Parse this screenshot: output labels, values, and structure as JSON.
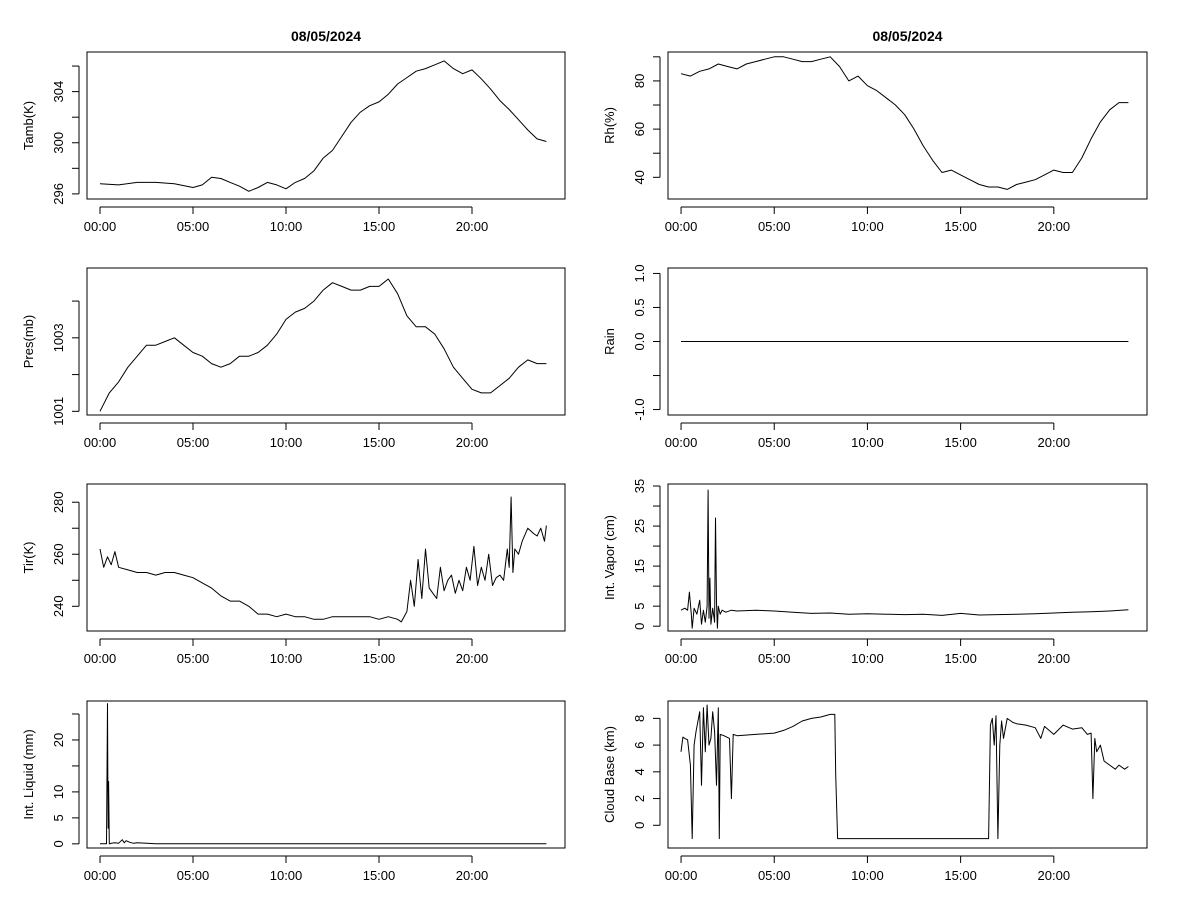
{
  "chart_data": [
    {
      "id": "tamb",
      "type": "line",
      "title": "08/05/2024",
      "ylabel": "Tamb(K)",
      "xlabel": "",
      "xlim": [
        -0.7,
        25
      ],
      "ylim": [
        295.6,
        307.1
      ],
      "xticks": [
        0,
        5,
        10,
        15,
        20
      ],
      "xtick_labels": [
        "00:00",
        "05:00",
        "10:00",
        "15:00",
        "20:00"
      ],
      "yticks": [
        296,
        298,
        300,
        302,
        304,
        306
      ],
      "ytick_labels": [
        "296",
        "",
        "300",
        "",
        "304",
        ""
      ],
      "series": [
        {
          "name": "Tamb",
          "x": [
            0,
            1,
            2,
            3,
            4,
            5,
            5.5,
            6,
            6.5,
            7,
            7.5,
            8,
            8.5,
            9,
            9.5,
            10,
            10.5,
            11,
            11.5,
            12,
            12.5,
            13,
            13.5,
            14,
            14.5,
            15,
            15.5,
            16,
            16.5,
            17,
            17.5,
            18,
            18.5,
            19,
            19.5,
            20,
            20.5,
            21,
            21.5,
            22,
            22.5,
            23,
            23.5,
            24
          ],
          "values": [
            296.8,
            296.7,
            296.9,
            296.9,
            296.8,
            296.5,
            296.7,
            297.3,
            297.2,
            296.9,
            296.6,
            296.2,
            296.5,
            296.9,
            296.7,
            296.4,
            296.9,
            297.2,
            297.8,
            298.8,
            299.4,
            300.5,
            301.6,
            302.4,
            302.9,
            303.2,
            303.8,
            304.6,
            305.1,
            305.6,
            305.8,
            306.1,
            306.4,
            305.8,
            305.4,
            305.7,
            305.0,
            304.2,
            303.3,
            302.6,
            301.8,
            301.0,
            300.3,
            300.1
          ]
        }
      ]
    },
    {
      "id": "rh",
      "type": "line",
      "title": "08/05/2024",
      "ylabel": "Rh(%)",
      "xlabel": "",
      "xlim": [
        -0.7,
        25
      ],
      "ylim": [
        31,
        92
      ],
      "xticks": [
        0,
        5,
        10,
        15,
        20
      ],
      "xtick_labels": [
        "00:00",
        "05:00",
        "10:00",
        "15:00",
        "20:00"
      ],
      "yticks": [
        40,
        50,
        60,
        70,
        80,
        90
      ],
      "ytick_labels": [
        "40",
        "",
        "60",
        "",
        "80",
        ""
      ],
      "series": [
        {
          "name": "Rh",
          "x": [
            0,
            0.5,
            1,
            1.5,
            2,
            2.5,
            3,
            3.5,
            4,
            4.5,
            5,
            5.5,
            6,
            6.5,
            7,
            7.5,
            8,
            8.5,
            9,
            9.5,
            10,
            10.5,
            11,
            11.5,
            12,
            12.5,
            13,
            13.5,
            14,
            14.5,
            15,
            15.5,
            16,
            16.5,
            17,
            17.5,
            18,
            18.5,
            19,
            19.5,
            20,
            20.5,
            21,
            21.5,
            22,
            22.5,
            23,
            23.5,
            24
          ],
          "values": [
            83,
            82,
            84,
            85,
            87,
            86,
            85,
            87,
            88,
            89,
            90,
            90,
            89,
            88,
            88,
            89,
            90,
            86,
            80,
            82,
            78,
            76,
            73,
            70,
            66,
            60,
            53,
            47,
            42,
            43,
            41,
            39,
            37,
            36,
            36,
            35,
            37,
            38,
            39,
            41,
            43,
            42,
            42,
            48,
            56,
            63,
            68,
            71,
            71
          ]
        }
      ]
    },
    {
      "id": "pres",
      "type": "line",
      "title": "",
      "ylabel": "Pres(mb)",
      "xlabel": "",
      "xlim": [
        -0.7,
        25
      ],
      "ylim": [
        1000.9,
        1004.9
      ],
      "xticks": [
        0,
        5,
        10,
        15,
        20
      ],
      "xtick_labels": [
        "00:00",
        "05:00",
        "10:00",
        "15:00",
        "20:00"
      ],
      "yticks": [
        1001,
        1002,
        1003,
        1004
      ],
      "ytick_labels": [
        "1001",
        "",
        "1003",
        ""
      ],
      "series": [
        {
          "name": "Pres",
          "x": [
            0,
            0.5,
            1,
            1.5,
            2,
            2.5,
            3,
            3.5,
            4,
            4.5,
            5,
            5.5,
            6,
            6.5,
            7,
            7.5,
            8,
            8.5,
            9,
            9.5,
            10,
            10.5,
            11,
            11.5,
            12,
            12.5,
            13,
            13.5,
            14,
            14.5,
            15,
            15.5,
            16,
            16.5,
            17,
            17.5,
            18,
            18.5,
            19,
            19.5,
            20,
            20.5,
            21,
            21.5,
            22,
            22.5,
            23,
            23.5,
            24
          ],
          "values": [
            1001.0,
            1001.5,
            1001.8,
            1002.2,
            1002.5,
            1002.8,
            1002.8,
            1002.9,
            1003.0,
            1002.8,
            1002.6,
            1002.5,
            1002.3,
            1002.2,
            1002.3,
            1002.5,
            1002.5,
            1002.6,
            1002.8,
            1003.1,
            1003.5,
            1003.7,
            1003.8,
            1004.0,
            1004.3,
            1004.5,
            1004.4,
            1004.3,
            1004.3,
            1004.4,
            1004.4,
            1004.6,
            1004.2,
            1003.6,
            1003.3,
            1003.3,
            1003.1,
            1002.7,
            1002.2,
            1001.9,
            1001.6,
            1001.5,
            1001.5,
            1001.7,
            1001.9,
            1002.2,
            1002.4,
            1002.3,
            1002.3
          ]
        }
      ]
    },
    {
      "id": "rain",
      "type": "line",
      "title": "",
      "ylabel": "Rain",
      "xlabel": "",
      "xlim": [
        -0.7,
        25
      ],
      "ylim": [
        -1.08,
        1.08
      ],
      "xticks": [
        0,
        5,
        10,
        15,
        20
      ],
      "xtick_labels": [
        "00:00",
        "05:00",
        "10:00",
        "15:00",
        "20:00"
      ],
      "yticks": [
        -1.0,
        -0.5,
        0.0,
        0.5,
        1.0
      ],
      "ytick_labels": [
        "-1.0",
        "",
        "0.0",
        "0.5",
        "1.0"
      ],
      "series": [
        {
          "name": "Rain",
          "x": [
            0,
            24
          ],
          "values": [
            0,
            0
          ]
        }
      ]
    },
    {
      "id": "tir",
      "type": "line",
      "title": "",
      "ylabel": "Tir(K)",
      "xlabel": "",
      "xlim": [
        -0.7,
        25
      ],
      "ylim": [
        230.5,
        287
      ],
      "xticks": [
        0,
        5,
        10,
        15,
        20
      ],
      "xtick_labels": [
        "00:00",
        "05:00",
        "10:00",
        "15:00",
        "20:00"
      ],
      "yticks": [
        240,
        250,
        260,
        270,
        280
      ],
      "ytick_labels": [
        "240",
        "",
        "260",
        "",
        "280"
      ],
      "series": [
        {
          "name": "Tir",
          "x": [
            0,
            0.2,
            0.4,
            0.6,
            0.8,
            1,
            1.5,
            2,
            2.5,
            3,
            3.5,
            4,
            4.5,
            5,
            5.5,
            6,
            6.5,
            7,
            7.5,
            8,
            8.5,
            9,
            9.5,
            10,
            10.5,
            11,
            11.5,
            12,
            12.5,
            13,
            13.5,
            14,
            14.5,
            15,
            15.5,
            16,
            16.2,
            16.5,
            16.7,
            16.9,
            17.1,
            17.3,
            17.5,
            17.7,
            17.9,
            18.1,
            18.3,
            18.5,
            18.7,
            18.9,
            19.1,
            19.3,
            19.5,
            19.7,
            19.9,
            20.1,
            20.3,
            20.5,
            20.7,
            20.9,
            21.1,
            21.3,
            21.5,
            21.7,
            21.9,
            22.0,
            22.1,
            22.2,
            22.3,
            22.5,
            22.7,
            23,
            23.3,
            23.5,
            23.7,
            23.9,
            24
          ],
          "values": [
            262,
            255,
            259,
            256,
            261,
            255,
            254,
            253,
            253,
            252,
            253,
            253,
            252,
            251,
            249,
            247,
            244,
            242,
            242,
            240,
            237,
            237,
            236,
            237,
            236,
            236,
            235,
            235,
            236,
            236,
            236,
            236,
            236,
            235,
            236,
            235,
            234,
            238,
            250,
            240,
            258,
            243,
            262,
            247,
            245,
            243,
            255,
            246,
            250,
            252,
            245,
            250,
            246,
            255,
            250,
            263,
            248,
            255,
            250,
            260,
            248,
            251,
            252,
            250,
            262,
            255,
            282,
            253,
            262,
            260,
            265,
            270,
            268,
            267,
            270,
            265,
            271
          ]
        }
      ]
    },
    {
      "id": "vapor",
      "type": "line",
      "title": "",
      "ylabel": "Int. Vapor (cm)",
      "xlabel": "",
      "xlim": [
        -0.7,
        25
      ],
      "ylim": [
        -1.2,
        35.5
      ],
      "xticks": [
        0,
        5,
        10,
        15,
        20
      ],
      "xtick_labels": [
        "00:00",
        "05:00",
        "10:00",
        "15:00",
        "20:00"
      ],
      "yticks": [
        0,
        5,
        10,
        15,
        20,
        25,
        30,
        35
      ],
      "ytick_labels": [
        "0",
        "5",
        "",
        "15",
        "",
        "25",
        "",
        "35"
      ],
      "series": [
        {
          "name": "Vapor",
          "x": [
            0,
            0.2,
            0.35,
            0.45,
            0.55,
            0.6,
            0.7,
            0.85,
            1.0,
            1.1,
            1.2,
            1.3,
            1.4,
            1.45,
            1.5,
            1.55,
            1.6,
            1.7,
            1.8,
            1.85,
            1.9,
            1.95,
            2.0,
            2.1,
            2.2,
            2.4,
            2.7,
            3,
            4,
            5,
            6,
            7,
            8,
            9,
            10,
            11,
            12,
            13,
            14,
            15,
            16,
            17,
            18,
            19,
            20,
            21,
            22,
            23,
            24
          ],
          "values": [
            4,
            4.5,
            4,
            8.5,
            3,
            -0.5,
            4.5,
            3,
            6.5,
            0.5,
            4,
            1,
            5,
            34,
            2,
            12,
            0.5,
            4.5,
            1,
            27,
            6,
            -0.5,
            5,
            3,
            4,
            3.5,
            4,
            3.8,
            4,
            3.8,
            3.5,
            3.2,
            3.3,
            3.0,
            3.1,
            3.0,
            2.9,
            3.0,
            2.7,
            3.2,
            2.8,
            2.9,
            3.0,
            3.1,
            3.3,
            3.5,
            3.6,
            3.8,
            4.1
          ]
        }
      ]
    },
    {
      "id": "liquid",
      "type": "line",
      "title": "",
      "ylabel": "Int. Liquid (mm)",
      "xlabel": "",
      "xlim": [
        -0.7,
        25
      ],
      "ylim": [
        -0.8,
        27.5
      ],
      "xticks": [
        0,
        5,
        10,
        15,
        20
      ],
      "xtick_labels": [
        "00:00",
        "05:00",
        "10:00",
        "15:00",
        "20:00"
      ],
      "yticks": [
        0,
        5,
        10,
        15,
        20,
        25
      ],
      "ytick_labels": [
        "0",
        "5",
        "10",
        "",
        "20",
        ""
      ],
      "series": [
        {
          "name": "Liquid",
          "x": [
            0,
            0.35,
            0.4,
            0.42,
            0.44,
            0.46,
            0.5,
            0.55,
            0.6,
            0.8,
            1.0,
            1.2,
            1.3,
            1.4,
            1.6,
            1.8,
            2.0,
            2.5,
            3,
            24
          ],
          "values": [
            0,
            0,
            27,
            14,
            3,
            12,
            0,
            0,
            0.1,
            0.2,
            0.1,
            0.8,
            0.2,
            0.6,
            0.3,
            0.1,
            0.2,
            0.1,
            0,
            0
          ]
        }
      ]
    },
    {
      "id": "cloudbase",
      "type": "line",
      "title": "",
      "ylabel": "Cloud Base (km)",
      "xlabel": "",
      "xlim": [
        -0.7,
        25
      ],
      "ylim": [
        -1.7,
        9.3
      ],
      "xticks": [
        0,
        5,
        10,
        15,
        20
      ],
      "xtick_labels": [
        "00:00",
        "05:00",
        "10:00",
        "15:00",
        "20:00"
      ],
      "yticks": [
        0,
        2,
        4,
        6,
        8
      ],
      "ytick_labels": [
        "0",
        "2",
        "4",
        "6",
        "8"
      ],
      "series": [
        {
          "name": "CloudBase",
          "x": [
            0,
            0.1,
            0.2,
            0.35,
            0.5,
            0.6,
            0.7,
            0.8,
            1.0,
            1.1,
            1.2,
            1.3,
            1.4,
            1.5,
            1.6,
            1.7,
            1.8,
            1.9,
            2.0,
            2.05,
            2.1,
            2.3,
            2.6,
            2.7,
            2.8,
            3,
            4,
            5,
            5.5,
            6,
            6.5,
            7,
            7.5,
            8,
            8.25,
            8.3,
            8.4,
            9,
            10,
            12,
            14,
            16,
            16.5,
            16.6,
            16.7,
            16.8,
            16.9,
            17.0,
            17.1,
            17.2,
            17.3,
            17.5,
            17.8,
            18,
            18.5,
            19,
            19.3,
            19.5,
            20,
            20.5,
            21,
            21.5,
            21.8,
            22,
            22.1,
            22.2,
            22.3,
            22.5,
            22.7,
            23,
            23.3,
            23.5,
            23.8,
            24
          ],
          "values": [
            5.5,
            6.6,
            6.5,
            6.4,
            4.5,
            -1,
            6,
            7,
            8.5,
            3,
            8.8,
            5.5,
            9,
            6,
            6.5,
            8.5,
            7,
            3,
            8.8,
            -1,
            6.8,
            6.7,
            6.5,
            2,
            6.8,
            6.7,
            6.8,
            6.9,
            7.1,
            7.4,
            7.8,
            8.0,
            8.1,
            8.3,
            8.3,
            3.8,
            -1,
            -1,
            -1,
            -1,
            -1,
            -1,
            -1,
            7.5,
            8.0,
            6,
            8.2,
            -1,
            6,
            7.8,
            6.5,
            8.0,
            7.7,
            7.6,
            7.5,
            7.3,
            6.5,
            7.4,
            6.8,
            7.5,
            7.2,
            7.3,
            6.8,
            6.9,
            2,
            6.5,
            5.5,
            6.0,
            4.8,
            4.5,
            4.2,
            4.5,
            4.2,
            4.4
          ]
        }
      ]
    }
  ]
}
